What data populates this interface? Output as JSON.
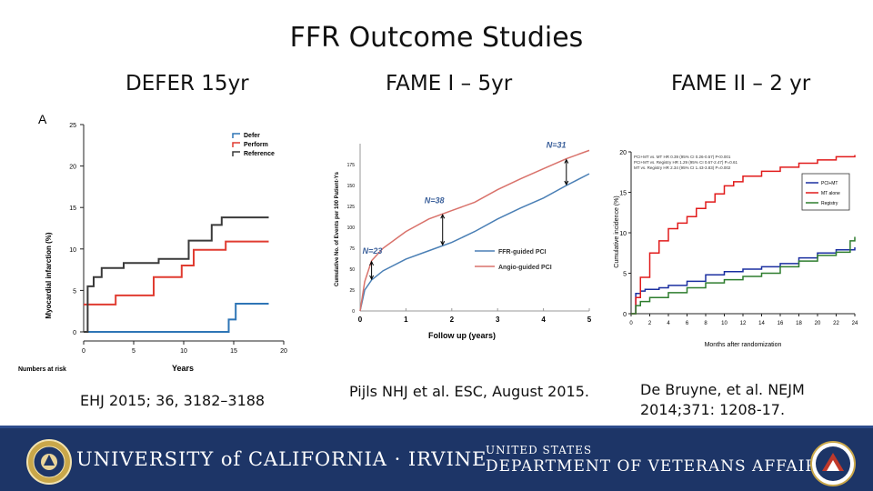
{
  "slide": {
    "title": "FFR Outcome Studies",
    "headings": [
      "DEFER 15yr",
      "FAME I – 5yr",
      "FAME II – 2 yr"
    ],
    "citations": {
      "defer": "EHJ 2015; 36, 3182–3188",
      "fame1": "Pijls NHJ et al. ESC, August 2015.",
      "fame2_line1": "De Bruyne, et al. NEJM",
      "fame2_line2": "2014;371: 1208-17."
    }
  },
  "footer": {
    "uci_logo_text": "UNIVERSITY of CALIFORNIA · IRVINE",
    "va_logo_line1": "UNITED STATES",
    "va_logo_line2": "DEPARTMENT OF VETERANS AFFAIRS"
  },
  "chart_data": [
    {
      "type": "line",
      "panel_label": "A",
      "xlabel": "Years",
      "ylabel": "Myocardial infarction (%)",
      "xlim": [
        0,
        20
      ],
      "ylim": [
        0,
        25
      ],
      "xticks": [
        0,
        5,
        10,
        15,
        20
      ],
      "yticks": [
        0,
        5,
        10,
        15,
        20,
        25
      ],
      "footnote": "Numbers at risk",
      "legend_position": "top-right",
      "series": [
        {
          "name": "Defer",
          "color": "#2e75b6",
          "step": true,
          "x": [
            0,
            14.5,
            14.5,
            15.2,
            15.2,
            18.5
          ],
          "y": [
            0,
            0,
            1.5,
            1.5,
            3.4,
            3.4
          ]
        },
        {
          "name": "Perform",
          "color": "#e03c31",
          "step": true,
          "x": [
            0,
            0.8,
            0.8,
            3.2,
            3.2,
            7.0,
            7.0,
            9.8,
            9.8,
            11.0,
            11.0,
            14.2,
            14.2,
            18.5
          ],
          "y": [
            3.3,
            3.3,
            3.3,
            3.3,
            4.4,
            4.4,
            6.6,
            6.6,
            8.0,
            8.0,
            9.9,
            9.9,
            10.9,
            10.9
          ]
        },
        {
          "name": "Reference",
          "color": "#3a3a3a",
          "step": true,
          "x": [
            0,
            0.4,
            0.4,
            1.0,
            1.0,
            1.8,
            1.8,
            4.0,
            4.0,
            7.5,
            7.5,
            10.5,
            10.5,
            12.8,
            12.8,
            13.8,
            13.8,
            18.5
          ],
          "y": [
            0,
            0,
            5.5,
            5.5,
            6.6,
            6.6,
            7.7,
            7.7,
            8.3,
            8.3,
            8.8,
            8.8,
            11.0,
            11.0,
            12.9,
            12.9,
            13.8,
            13.8
          ]
        }
      ]
    },
    {
      "type": "line",
      "xlabel": "Follow up (years)",
      "ylabel": "Cumulative No. of Events per 100 Patient-Ys",
      "xlim": [
        0,
        5
      ],
      "ylim": [
        0,
        200
      ],
      "xticks": [
        0,
        1,
        2,
        3,
        4,
        5
      ],
      "yticks": [
        0,
        25,
        50,
        75,
        100,
        125,
        150,
        175
      ],
      "legend_position": "bottom-right",
      "annotations": [
        {
          "text": "N=23",
          "x": 0.25
        },
        {
          "text": "N=38",
          "x": 1.8
        },
        {
          "text": "N=31",
          "x": 4.5
        }
      ],
      "series": [
        {
          "name": "FFR-guided PCI",
          "color": "#4a7fb5",
          "x": [
            0,
            0.1,
            0.25,
            0.5,
            1.0,
            1.5,
            2.0,
            2.5,
            3.0,
            3.5,
            4.0,
            4.5,
            5.0
          ],
          "y": [
            0,
            25,
            37,
            48,
            62,
            72,
            82,
            95,
            110,
            123,
            135,
            150,
            164
          ]
        },
        {
          "name": "Angio-guided PCI",
          "color": "#d9726b",
          "x": [
            0,
            0.1,
            0.25,
            0.5,
            1.0,
            1.5,
            2.0,
            2.5,
            3.0,
            3.5,
            4.0,
            4.5,
            5.0
          ],
          "y": [
            0,
            35,
            60,
            75,
            95,
            110,
            120,
            130,
            145,
            158,
            170,
            182,
            192
          ]
        }
      ]
    },
    {
      "type": "line",
      "xlabel": "Months after randomization",
      "ylabel": "Cumulative incidence (%)",
      "xlim": [
        0,
        24
      ],
      "ylim": [
        0,
        20
      ],
      "xticks": [
        0,
        2,
        4,
        6,
        8,
        10,
        12,
        14,
        16,
        18,
        20,
        22,
        24
      ],
      "yticks": [
        0,
        5,
        10,
        15,
        20
      ],
      "legend_position": "top-right",
      "notes": [
        "PCI+MT vs. MT HR 0.39 (95% CI 0.26-0.57) P<0.001",
        "PCI+MT vs. Registry HR 1.29 (95% CI 0.67-2.47) P=0.61",
        "MT vs. Registry HR 2.34 (95% CI 1.43-3.83) P=0.002"
      ],
      "series": [
        {
          "name": "PCI+MT",
          "color": "#1a2fa0",
          "step": true,
          "x": [
            0,
            0.5,
            1,
            1.5,
            3,
            4,
            6,
            8,
            10,
            12,
            14,
            16,
            18,
            20,
            22,
            24
          ],
          "y": [
            0,
            2.5,
            2.8,
            3.0,
            3.2,
            3.5,
            4.0,
            4.8,
            5.2,
            5.5,
            5.8,
            6.2,
            6.9,
            7.5,
            7.9,
            8.2
          ]
        },
        {
          "name": "MT alone",
          "color": "#e11b1b",
          "step": true,
          "x": [
            0,
            0.5,
            1,
            2,
            3,
            4,
            5,
            6,
            7,
            8,
            9,
            10,
            11,
            12,
            14,
            16,
            18,
            20,
            22,
            24
          ],
          "y": [
            0,
            2.0,
            4.5,
            7.5,
            9.0,
            10.5,
            11.2,
            12.0,
            13.0,
            13.8,
            14.8,
            15.8,
            16.3,
            17.0,
            17.6,
            18.1,
            18.6,
            19.0,
            19.4,
            19.6
          ]
        },
        {
          "name": "Registry",
          "color": "#2e7d2e",
          "step": true,
          "x": [
            0,
            0.5,
            1,
            2,
            4,
            6,
            8,
            10,
            12,
            14,
            16,
            18,
            20,
            22,
            23.5,
            24
          ],
          "y": [
            0,
            1.0,
            1.5,
            2.0,
            2.6,
            3.2,
            3.8,
            4.2,
            4.6,
            5.0,
            5.8,
            6.5,
            7.2,
            7.6,
            9.0,
            9.5
          ]
        }
      ]
    }
  ]
}
